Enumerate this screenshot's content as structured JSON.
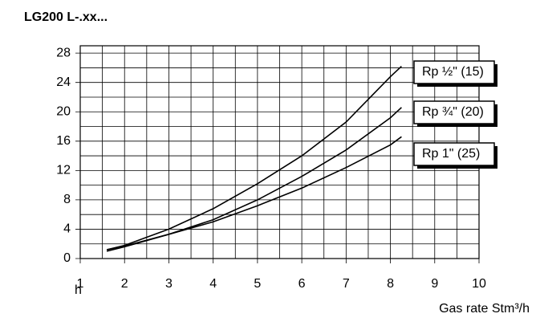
{
  "chart_data": {
    "type": "line",
    "title": "LG200 L-.xx...",
    "y_label": "h",
    "x_label": "Gas rate  Stm³/h",
    "x": [
      1.6,
      2,
      3,
      4,
      5,
      6,
      7,
      8,
      8.25
    ],
    "series": [
      {
        "name": "Rp ½\" (15)",
        "color": "#000000",
        "values": [
          1.2,
          1.8,
          4.0,
          6.8,
          10.2,
          14.0,
          18.6,
          24.8,
          26.2
        ]
      },
      {
        "name": "Rp ¾\" (20)",
        "color": "#000000",
        "values": [
          1.0,
          1.6,
          3.3,
          5.3,
          8.0,
          11.2,
          14.8,
          19.2,
          20.6
        ]
      },
      {
        "name": "Rp 1\" (25)",
        "color": "#000000",
        "values": [
          1.2,
          1.7,
          3.3,
          5.0,
          7.2,
          9.6,
          12.4,
          15.5,
          16.6
        ]
      }
    ],
    "xlim": [
      1,
      10
    ],
    "xticks": [
      1,
      2,
      3,
      4,
      5,
      6,
      7,
      8,
      9,
      10
    ],
    "minor_xticks": [
      1.5,
      2.5,
      3.5,
      4.5,
      5.5,
      6.5,
      7.5,
      8.5,
      9.5
    ],
    "ylim": [
      0,
      29
    ],
    "yticks": [
      0,
      4,
      8,
      12,
      16,
      20,
      24,
      28
    ],
    "minor_yticks": [
      2,
      6,
      10,
      14,
      18,
      22,
      26
    ],
    "grid": true
  }
}
